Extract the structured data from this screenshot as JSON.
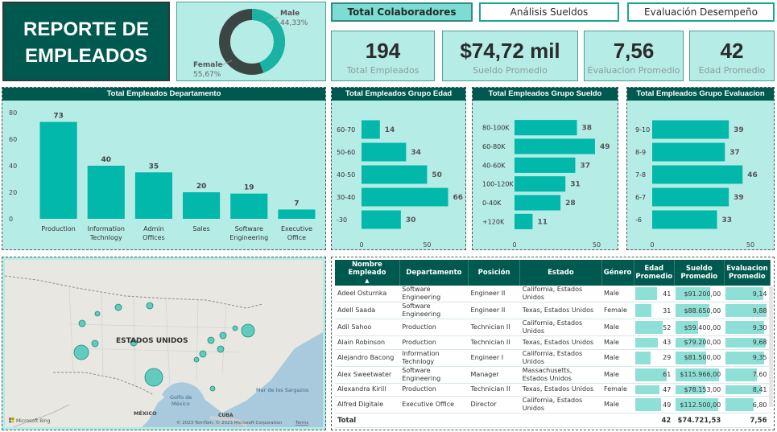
{
  "title": "REPORTE DE\nEMPLEADOS",
  "gender_donut": {
    "male_label": "Male",
    "male_pct": "44,33%",
    "female_label": "Female",
    "female_pct": "55,67%",
    "male_value": 44.33,
    "female_value": 55.67,
    "colors": {
      "male": "#1ab3a3",
      "female": "#3a4544"
    }
  },
  "tabs": [
    {
      "label": "Total Colaboradores",
      "active": true
    },
    {
      "label": "Análisis Sueldos",
      "active": false
    },
    {
      "label": "Evaluación Desempeño",
      "active": false
    }
  ],
  "kpis": [
    {
      "value": "194",
      "label": "Total Empleados"
    },
    {
      "value": "$74,72 mil",
      "label": "Sueldo Promedio"
    },
    {
      "value": "7,56",
      "label": "Evaluacion Promedio"
    },
    {
      "value": "42",
      "label": "Edad Promedio"
    }
  ],
  "charts": {
    "departamento": {
      "title": "Total Empleados Departamento",
      "type": "bar",
      "categories": [
        "Production",
        "Information Technlogy",
        "Admin Offices",
        "Sales",
        "Software Engineering",
        "Executive Office"
      ],
      "category_lines": [
        [
          "Production"
        ],
        [
          "Information",
          "Technlogy"
        ],
        [
          "Admin",
          "Offices"
        ],
        [
          "Sales"
        ],
        [
          "Software",
          "Engineering"
        ],
        [
          "Executive",
          "Office"
        ]
      ],
      "values": [
        73,
        40,
        35,
        20,
        19,
        7
      ],
      "yticks": [
        "0",
        "20",
        "40",
        "60",
        "80"
      ],
      "ylim": [
        0,
        80
      ]
    },
    "edad": {
      "title": "Total Empleados Grupo Edad",
      "type": "hbar",
      "categories": [
        "60-70",
        "50-60",
        "40-50",
        "30-40",
        "-30"
      ],
      "values": [
        14,
        34,
        50,
        66,
        30
      ],
      "xticks": [
        "0",
        "50"
      ],
      "xlim": [
        0,
        70
      ]
    },
    "sueldo": {
      "title": "Total Empleados Grupo Sueldo",
      "type": "hbar",
      "categories": [
        "80-100K",
        "60-80K",
        "40-60K",
        "100-120K",
        "0-40K",
        "+120K"
      ],
      "values": [
        38,
        49,
        37,
        31,
        28,
        11
      ],
      "xticks": [
        "0",
        "50"
      ],
      "xlim": [
        0,
        50
      ]
    },
    "evaluacion": {
      "title": "Total Empleados Grupo Evaluacion",
      "type": "hbar",
      "categories": [
        "9-10",
        "8-9",
        "7-8",
        "6-7",
        "-6"
      ],
      "values": [
        39,
        37,
        46,
        39,
        33
      ],
      "xticks": [
        "0",
        "50"
      ],
      "xlim": [
        0,
        50
      ]
    }
  },
  "map": {
    "country_label": "ESTADOS UNIDOS",
    "labels": {
      "mexico": "MÉXICO",
      "gulf": "Golfo de\nMéxico",
      "sargazos": "Mar de los Sargazos",
      "cuba": "CUBA"
    },
    "brand": "Microsoft Bing",
    "copyright": "© 2023 TomTom, © 2023 Microsoft Corporation",
    "terms": "Terms",
    "bubble_color": "#36c1b0"
  },
  "table": {
    "headers": [
      "Nombre Empleado",
      "Departamento",
      "Posición",
      "Estado",
      "Género",
      "Edad Promedio",
      "Sueldo Promedio",
      "Evaluacion Promedio"
    ],
    "sort_indicator": "▲",
    "rows": [
      {
        "name": "Adeel Osturnka",
        "dept": "Software Engineering",
        "pos": "Engineer II",
        "estado": "California, Estados Unidos",
        "genero": "Male",
        "edad": "41",
        "sueldo": "$91.200,00",
        "eval": "9,14",
        "edad_v": 41,
        "sueldo_v": 91200,
        "eval_v": 9.14
      },
      {
        "name": "Adell Saada",
        "dept": "Software Engineering",
        "pos": "Engineer II",
        "estado": "Texas, Estados Unidos",
        "genero": "Female",
        "edad": "31",
        "sueldo": "$88.650,00",
        "eval": "9,88",
        "edad_v": 31,
        "sueldo_v": 88650,
        "eval_v": 9.88
      },
      {
        "name": "Adil Sahoo",
        "dept": "Production",
        "pos": "Technician II",
        "estado": "California, Estados Unidos",
        "genero": "Male",
        "edad": "52",
        "sueldo": "$59.400,00",
        "eval": "9,30",
        "edad_v": 52,
        "sueldo_v": 59400,
        "eval_v": 9.3
      },
      {
        "name": "Alain Robinson",
        "dept": "Production",
        "pos": "Technician II",
        "estado": "Texas, Estados Unidos",
        "genero": "Male",
        "edad": "43",
        "sueldo": "$79.200,00",
        "eval": "9,68",
        "edad_v": 43,
        "sueldo_v": 79200,
        "eval_v": 9.68
      },
      {
        "name": "Alejandro Bacong",
        "dept": "Information Technlogy",
        "pos": "Engineer I",
        "estado": "California, Estados Unidos",
        "genero": "Male",
        "edad": "29",
        "sueldo": "$81.500,00",
        "eval": "9,35",
        "edad_v": 29,
        "sueldo_v": 81500,
        "eval_v": 9.35
      },
      {
        "name": "Alex Sweetwater",
        "dept": "Software Engineering",
        "pos": "Manager",
        "estado": "Massachusetts, Estados Unidos",
        "genero": "Male",
        "edad": "61",
        "sueldo": "$115.966,00",
        "eval": "7,60",
        "edad_v": 61,
        "sueldo_v": 115966,
        "eval_v": 7.6
      },
      {
        "name": "Alexandra Kirill",
        "dept": "Production",
        "pos": "Technician II",
        "estado": "Texas, Estados Unidos",
        "genero": "Female",
        "edad": "47",
        "sueldo": "$78.153,00",
        "eval": "8,41",
        "edad_v": 47,
        "sueldo_v": 78153,
        "eval_v": 8.41
      },
      {
        "name": "Alfred Digitale",
        "dept": "Executive Office",
        "pos": "Director",
        "estado": "California, Estados Unidos",
        "genero": "Male",
        "edad": "49",
        "sueldo": "$112.500,00",
        "eval": "6,80",
        "edad_v": 49,
        "sueldo_v": 112500,
        "eval_v": 6.8
      }
    ],
    "total": {
      "label": "Total",
      "edad": "42",
      "sueldo": "$74.721,53",
      "eval": "7,56"
    }
  }
}
